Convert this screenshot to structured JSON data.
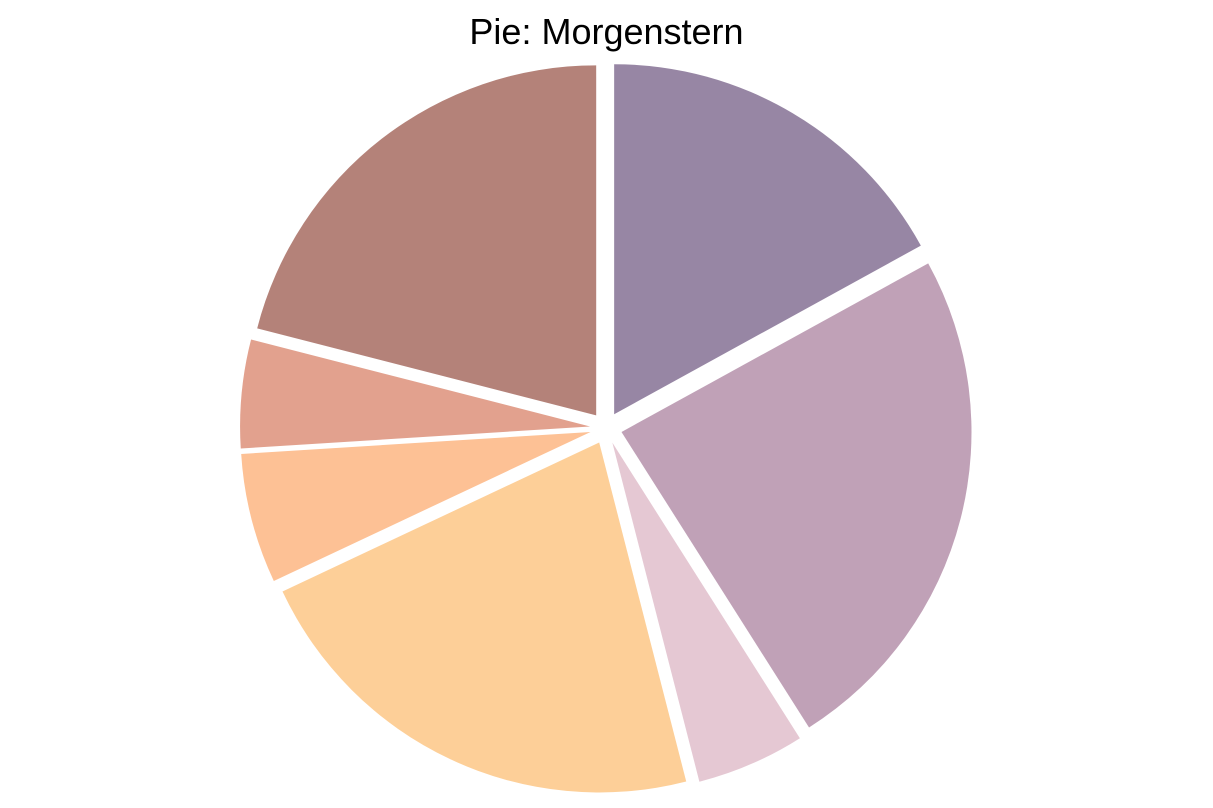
{
  "chart_data": {
    "type": "pie",
    "title": "Pie: Morgenstern",
    "start_angle_deg": 0,
    "direction": "clockwise",
    "exploded": true,
    "slices": [
      {
        "value": 17,
        "color": "#9786a4"
      },
      {
        "value": 24,
        "color": "#c0a1b7"
      },
      {
        "value": 5,
        "color": "#e5c8d3"
      },
      {
        "value": 22,
        "color": "#fdcf98"
      },
      {
        "value": 6,
        "color": "#fdc195"
      },
      {
        "value": 5,
        "color": "#e2a18e"
      },
      {
        "value": 21,
        "color": "#b48279"
      }
    ]
  }
}
